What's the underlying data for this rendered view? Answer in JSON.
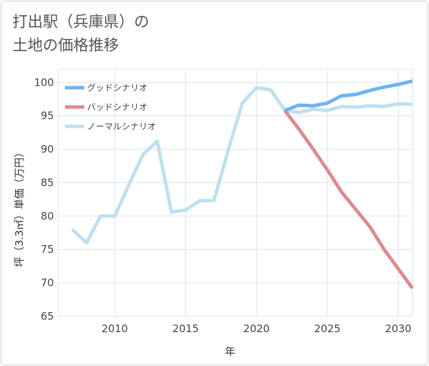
{
  "chart_data": {
    "type": "line",
    "title": [
      "打出駅（兵庫県）の",
      "土地の価格推移"
    ],
    "xlabel": "年",
    "ylabel": "坪（3.3㎡）単価（万円）",
    "xlim": [
      2006,
      2031
    ],
    "ylim": [
      65,
      102
    ],
    "xticks": [
      2010,
      2015,
      2020,
      2025,
      2030
    ],
    "yticks": [
      65,
      70,
      75,
      80,
      85,
      90,
      95,
      100
    ],
    "grid": true,
    "legend_position": "top-left",
    "series": [
      {
        "name": "グッドシナリオ",
        "color": "#6cb4ee",
        "x": [
          2022,
          2023,
          2024,
          2025,
          2026,
          2027,
          2028,
          2029,
          2030,
          2031
        ],
        "values": [
          95.8,
          96.6,
          96.5,
          96.9,
          98.0,
          98.2,
          98.8,
          99.3,
          99.7,
          100.2
        ]
      },
      {
        "name": "バッドシナリオ",
        "color": "#dc8a90",
        "x": [
          2022,
          2023,
          2024,
          2025,
          2026,
          2027,
          2028,
          2029,
          2030,
          2031
        ],
        "values": [
          95.8,
          93.0,
          90.0,
          86.9,
          83.6,
          81.0,
          78.4,
          75.0,
          72.1,
          69.2
        ]
      },
      {
        "name": "ノーマルシナリオ",
        "color": "#bfe0ee",
        "x": [
          2007,
          2008,
          2009,
          2010,
          2011,
          2012,
          2013,
          2014,
          2015,
          2016,
          2017,
          2018,
          2019,
          2020,
          2021,
          2022,
          2023,
          2024,
          2025,
          2026,
          2027,
          2028,
          2029,
          2030,
          2031
        ],
        "values": [
          78.0,
          76.0,
          80.0,
          80.0,
          84.7,
          89.2,
          91.2,
          80.6,
          80.9,
          82.3,
          82.3,
          89.8,
          96.9,
          99.2,
          98.9,
          95.8,
          95.5,
          96.0,
          95.8,
          96.4,
          96.3,
          96.5,
          96.4,
          96.8,
          96.7
        ]
      }
    ]
  }
}
